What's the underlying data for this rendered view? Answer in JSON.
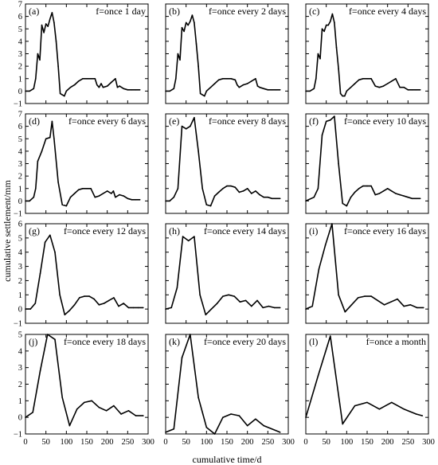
{
  "figure": {
    "xlabel": "cumulative time/d",
    "ylabel": "cumulative settlement/mm"
  },
  "chart_data": [
    {
      "type": "line",
      "panel": "(a)",
      "title": "f=once 1 day",
      "xlim": [
        0,
        300
      ],
      "ylim": [
        -1,
        7
      ],
      "xticks": [
        0,
        50,
        100,
        150,
        200,
        250,
        300
      ],
      "yticks": [
        -1,
        0,
        1,
        2,
        3,
        4,
        5,
        6,
        7
      ],
      "x": [
        0,
        10,
        20,
        25,
        30,
        35,
        40,
        45,
        50,
        55,
        60,
        65,
        70,
        75,
        80,
        85,
        90,
        95,
        100,
        110,
        120,
        130,
        140,
        150,
        160,
        170,
        175,
        180,
        185,
        190,
        200,
        210,
        220,
        225,
        230,
        240,
        250,
        260,
        270,
        280
      ],
      "y": [
        0,
        0,
        0.2,
        1.0,
        3.0,
        2.5,
        5.3,
        4.7,
        5.4,
        5.2,
        5.8,
        6.3,
        5.5,
        4.0,
        2.0,
        -0.2,
        -0.3,
        -0.4,
        0,
        0.3,
        0.5,
        0.8,
        1.0,
        1.0,
        1.0,
        1.0,
        0.5,
        0.3,
        0.6,
        0.3,
        0.4,
        0.7,
        1.0,
        0.3,
        0.4,
        0.2,
        0.1,
        0.1,
        0.1,
        0.1
      ]
    },
    {
      "type": "line",
      "panel": "(b)",
      "title": "f=once every 2 days",
      "xlim": [
        0,
        300
      ],
      "ylim": [
        -1,
        7
      ],
      "xticks": [
        0,
        50,
        100,
        150,
        200,
        250,
        300
      ],
      "yticks": [
        -1,
        0,
        1,
        2,
        3,
        4,
        5,
        6,
        7
      ],
      "x": [
        0,
        10,
        20,
        25,
        30,
        35,
        40,
        45,
        50,
        55,
        60,
        65,
        70,
        75,
        80,
        85,
        90,
        95,
        100,
        110,
        120,
        130,
        140,
        150,
        160,
        170,
        175,
        180,
        190,
        200,
        210,
        220,
        225,
        230,
        240,
        250,
        260,
        270,
        280
      ],
      "y": [
        0,
        0,
        0.2,
        1.0,
        3.0,
        2.5,
        5.1,
        4.8,
        5.5,
        5.3,
        5.6,
        6.1,
        5.5,
        3.8,
        2.0,
        -0.2,
        -0.3,
        -0.4,
        0,
        0.3,
        0.6,
        0.9,
        1.0,
        1.0,
        1.0,
        0.9,
        0.5,
        0.3,
        0.5,
        0.6,
        0.8,
        1.0,
        0.4,
        0.3,
        0.2,
        0.1,
        0.1,
        0.1,
        0.1
      ]
    },
    {
      "type": "line",
      "panel": "(c)",
      "title": "f=once every 4 days",
      "xlim": [
        0,
        300
      ],
      "ylim": [
        -1,
        7
      ],
      "xticks": [
        0,
        50,
        100,
        150,
        200,
        250,
        300
      ],
      "yticks": [
        -1,
        0,
        1,
        2,
        3,
        4,
        5,
        6,
        7
      ],
      "x": [
        0,
        10,
        20,
        25,
        30,
        35,
        40,
        45,
        50,
        55,
        60,
        65,
        70,
        75,
        80,
        85,
        90,
        95,
        100,
        110,
        120,
        130,
        140,
        150,
        160,
        170,
        180,
        190,
        200,
        210,
        220,
        230,
        240,
        250,
        260,
        270,
        280
      ],
      "y": [
        0,
        0,
        0.2,
        1.0,
        3.0,
        2.6,
        5.0,
        4.8,
        5.3,
        5.3,
        5.6,
        6.2,
        5.5,
        3.5,
        1.8,
        -0.2,
        -0.4,
        -0.4,
        0,
        0.3,
        0.6,
        0.9,
        1.0,
        1.0,
        1.0,
        0.4,
        0.3,
        0.4,
        0.6,
        0.8,
        1.0,
        0.3,
        0.3,
        0.1,
        0.1,
        0.1,
        0.1
      ]
    },
    {
      "type": "line",
      "panel": "(d)",
      "title": "f=once every 6 days",
      "xlim": [
        0,
        300
      ],
      "ylim": [
        -1,
        7
      ],
      "xticks": [
        0,
        50,
        100,
        150,
        200,
        250,
        300
      ],
      "yticks": [
        -1,
        0,
        1,
        2,
        3,
        4,
        5,
        6,
        7
      ],
      "x": [
        0,
        10,
        20,
        25,
        30,
        40,
        50,
        60,
        65,
        70,
        80,
        90,
        100,
        110,
        120,
        130,
        140,
        150,
        160,
        170,
        180,
        190,
        200,
        210,
        215,
        220,
        230,
        240,
        250,
        260,
        270,
        280
      ],
      "y": [
        0,
        0,
        0.3,
        1.0,
        3.2,
        4.0,
        5.0,
        5.1,
        6.4,
        5.0,
        1.5,
        -0.3,
        -0.4,
        0.3,
        0.6,
        0.9,
        1.0,
        1.0,
        1.0,
        0.3,
        0.4,
        0.6,
        0.8,
        0.6,
        0.8,
        0.3,
        0.5,
        0.4,
        0.2,
        0.1,
        0.1,
        0.1
      ]
    },
    {
      "type": "line",
      "panel": "(e)",
      "title": "f=once every 8 days",
      "xlim": [
        0,
        300
      ],
      "ylim": [
        -1,
        7
      ],
      "xticks": [
        0,
        50,
        100,
        150,
        200,
        250,
        300
      ],
      "yticks": [
        -1,
        0,
        1,
        2,
        3,
        4,
        5,
        6,
        7
      ],
      "x": [
        0,
        10,
        20,
        30,
        40,
        50,
        60,
        70,
        80,
        90,
        100,
        110,
        120,
        130,
        140,
        150,
        160,
        170,
        180,
        190,
        200,
        210,
        220,
        230,
        240,
        250,
        260,
        270,
        280
      ],
      "y": [
        0,
        0,
        0.3,
        1.0,
        6.0,
        5.8,
        6.0,
        6.7,
        4.0,
        1.0,
        -0.3,
        -0.4,
        0.4,
        0.7,
        1.0,
        1.2,
        1.2,
        1.1,
        0.7,
        0.8,
        1.0,
        0.6,
        0.8,
        0.5,
        0.3,
        0.3,
        0.2,
        0.2,
        0.2
      ]
    },
    {
      "type": "line",
      "panel": "(f)",
      "title": "f=once every 10 days",
      "xlim": [
        0,
        300
      ],
      "ylim": [
        -1,
        7
      ],
      "xticks": [
        0,
        50,
        100,
        150,
        200,
        250,
        300
      ],
      "yticks": [
        -1,
        0,
        1,
        2,
        3,
        4,
        5,
        6,
        7
      ],
      "x": [
        0,
        20,
        30,
        40,
        50,
        60,
        70,
        80,
        90,
        100,
        110,
        120,
        130,
        140,
        150,
        160,
        170,
        180,
        190,
        200,
        210,
        220,
        230,
        240,
        250,
        260,
        270,
        280
      ],
      "y": [
        0,
        0.3,
        1.0,
        5.3,
        6.4,
        6.5,
        6.8,
        3.0,
        -0.2,
        -0.4,
        0.3,
        0.7,
        1.0,
        1.2,
        1.2,
        1.2,
        0.5,
        0.6,
        0.8,
        1.0,
        0.8,
        0.6,
        0.5,
        0.4,
        0.3,
        0.2,
        0.2,
        0.2
      ]
    },
    {
      "type": "line",
      "panel": "(g)",
      "title": "f=once every 12 days",
      "xlim": [
        0,
        300
      ],
      "ylim": [
        -1,
        6
      ],
      "xticks": [
        0,
        50,
        100,
        150,
        200,
        250,
        300
      ],
      "yticks": [
        -1,
        0,
        1,
        2,
        3,
        4,
        5,
        6
      ],
      "x": [
        0,
        12,
        24,
        36,
        48,
        60,
        72,
        84,
        96,
        108,
        120,
        132,
        144,
        156,
        168,
        180,
        192,
        204,
        216,
        228,
        240,
        252,
        264,
        276,
        288
      ],
      "y": [
        0,
        0,
        0.4,
        2.5,
        4.7,
        5.2,
        4.0,
        1.0,
        -0.4,
        -0.1,
        0.3,
        0.8,
        0.9,
        0.9,
        0.7,
        0.3,
        0.4,
        0.6,
        0.8,
        0.2,
        0.4,
        0.1,
        0.1,
        0.1,
        0.1
      ]
    },
    {
      "type": "line",
      "panel": "(h)",
      "title": "f=once every 14 days",
      "xlim": [
        0,
        300
      ],
      "ylim": [
        -1,
        6
      ],
      "xticks": [
        0,
        50,
        100,
        150,
        200,
        250,
        300
      ],
      "yticks": [
        -1,
        0,
        1,
        2,
        3,
        4,
        5,
        6
      ],
      "x": [
        0,
        14,
        28,
        42,
        56,
        70,
        84,
        98,
        112,
        126,
        140,
        154,
        168,
        182,
        196,
        210,
        224,
        238,
        252,
        266,
        280
      ],
      "y": [
        0,
        0.1,
        1.5,
        5.1,
        4.8,
        5.1,
        1.0,
        -0.4,
        0,
        0.4,
        0.9,
        1.0,
        0.9,
        0.5,
        0.6,
        0.2,
        0.6,
        0.1,
        0.2,
        0.1,
        0.1
      ]
    },
    {
      "type": "line",
      "panel": "(i)",
      "title": "f=once every 16 days",
      "xlim": [
        0,
        300
      ],
      "ylim": [
        -1,
        6
      ],
      "xticks": [
        0,
        50,
        100,
        150,
        200,
        250,
        300
      ],
      "yticks": [
        -1,
        0,
        1,
        2,
        3,
        4,
        5,
        6
      ],
      "x": [
        0,
        16,
        32,
        48,
        64,
        80,
        96,
        112,
        128,
        144,
        160,
        176,
        192,
        208,
        224,
        240,
        256,
        272,
        288
      ],
      "y": [
        0,
        0.2,
        2.8,
        4.5,
        6.0,
        1.0,
        -0.2,
        0.3,
        0.8,
        0.9,
        0.9,
        0.6,
        0.3,
        0.5,
        0.7,
        0.2,
        0.3,
        0.1,
        0.1
      ]
    },
    {
      "type": "line",
      "panel": "(j)",
      "title": "f=once every 18 days",
      "xlim": [
        0,
        300
      ],
      "ylim": [
        -1,
        5
      ],
      "xticks": [
        0,
        50,
        100,
        150,
        200,
        250,
        300
      ],
      "yticks": [
        -1,
        0,
        1,
        2,
        3,
        4,
        5
      ],
      "x": [
        0,
        18,
        36,
        54,
        72,
        90,
        108,
        126,
        144,
        162,
        180,
        198,
        216,
        234,
        252,
        270,
        288
      ],
      "y": [
        0,
        0.3,
        2.8,
        5.0,
        4.7,
        1.2,
        -0.5,
        0.5,
        0.9,
        1.0,
        0.6,
        0.4,
        0.7,
        0.2,
        0.4,
        0.1,
        0.1
      ]
    },
    {
      "type": "line",
      "panel": "(k)",
      "title": "f=once every 20 days",
      "xlim": [
        0,
        300
      ],
      "ylim": [
        -1,
        5
      ],
      "xticks": [
        0,
        50,
        100,
        150,
        200,
        250,
        300
      ],
      "yticks": [
        -1,
        0,
        1,
        2,
        3,
        4,
        5
      ],
      "x": [
        0,
        20,
        40,
        60,
        80,
        100,
        120,
        140,
        160,
        180,
        200,
        220,
        240,
        260,
        280
      ],
      "y": [
        -0.9,
        -0.7,
        3.6,
        5.0,
        1.2,
        -0.6,
        -1.0,
        0,
        0.2,
        0.1,
        -0.5,
        -0.1,
        -0.5,
        -0.7,
        -0.9
      ]
    },
    {
      "type": "line",
      "panel": "(l)",
      "title": "f=once a month",
      "xlim": [
        0,
        300
      ],
      "ylim": [
        -1,
        5
      ],
      "xticks": [
        0,
        50,
        100,
        150,
        200,
        250,
        300
      ],
      "yticks": [
        -1,
        0,
        1,
        2,
        3,
        4,
        5
      ],
      "x": [
        0,
        30,
        60,
        90,
        120,
        150,
        180,
        210,
        240,
        270,
        285
      ],
      "y": [
        0,
        2.5,
        4.9,
        -0.4,
        0.7,
        0.9,
        0.5,
        0.9,
        0.5,
        0.2,
        0.1
      ]
    }
  ]
}
